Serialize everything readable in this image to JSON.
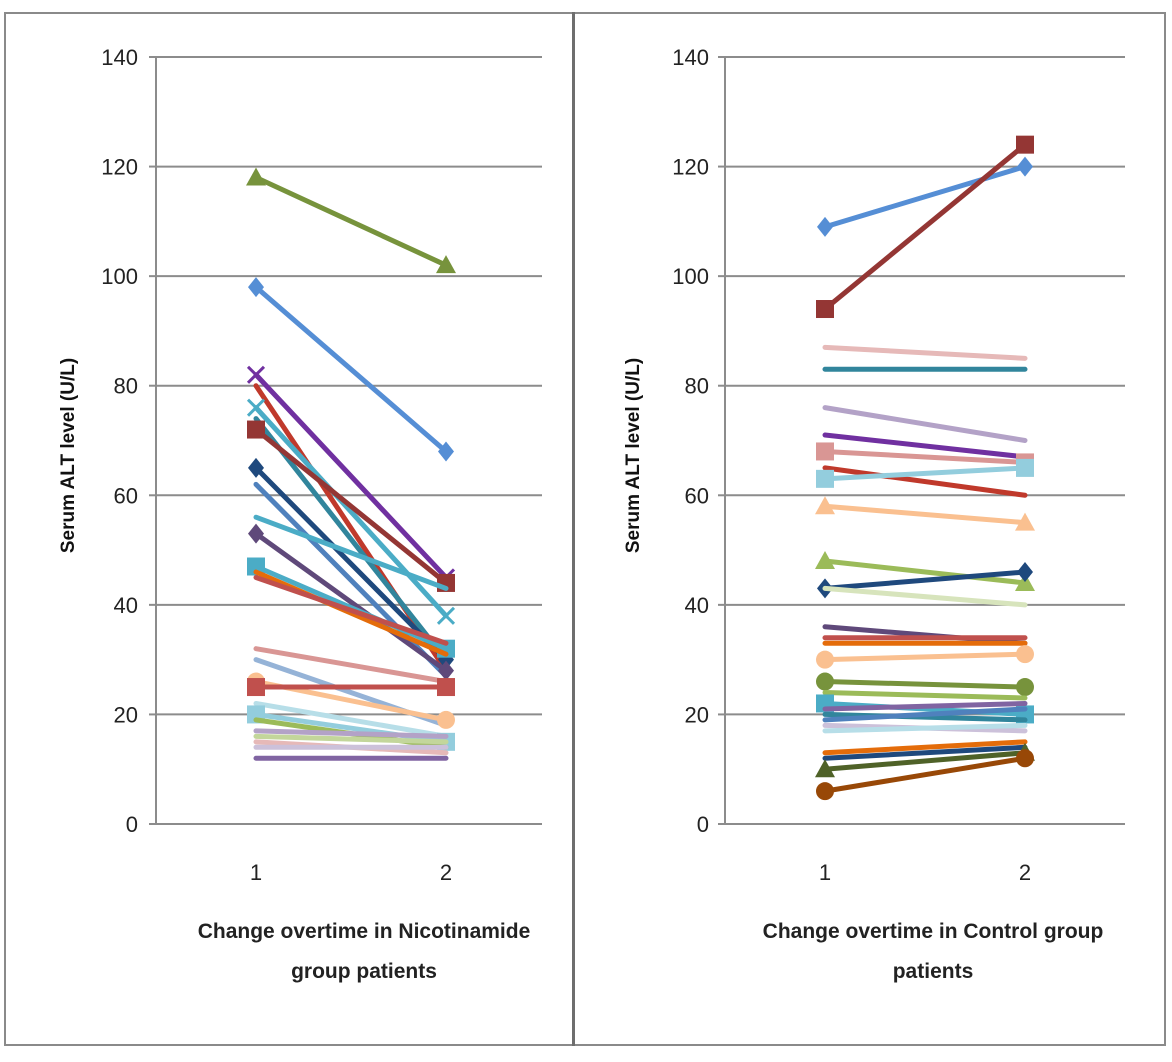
{
  "chart_data": [
    {
      "type": "line",
      "x": [
        1,
        2
      ],
      "x_tick_labels": [
        "1",
        "2"
      ],
      "xlabel_lines": [
        "Change overtime in Nicotinamide",
        "group patients"
      ],
      "ylabel": "Serum ALT level (U/L)",
      "ylim": [
        0,
        140
      ],
      "y_ticks": [
        0,
        20,
        40,
        60,
        80,
        100,
        120,
        140
      ],
      "grid": true,
      "series": [
        {
          "values": [
            118,
            102
          ],
          "color": "#77933c",
          "marker": "triangle"
        },
        {
          "values": [
            98,
            68
          ],
          "color": "#558ed5",
          "marker": "diamond"
        },
        {
          "values": [
            82,
            45
          ],
          "color": "#7030a0",
          "marker": "x"
        },
        {
          "values": [
            80,
            28
          ],
          "color": "#c0392b",
          "marker": "none"
        },
        {
          "values": [
            76,
            38
          ],
          "color": "#4bacc6",
          "marker": "x"
        },
        {
          "values": [
            74,
            30
          ],
          "color": "#31859c",
          "marker": "none"
        },
        {
          "values": [
            72,
            44
          ],
          "color": "#943634",
          "marker": "square"
        },
        {
          "values": [
            65,
            30
          ],
          "color": "#1f497d",
          "marker": "diamond"
        },
        {
          "values": [
            62,
            27
          ],
          "color": "#4f81bd",
          "marker": "none"
        },
        {
          "values": [
            56,
            43
          ],
          "color": "#4bacc6",
          "marker": "none"
        },
        {
          "values": [
            53,
            28
          ],
          "color": "#5f497a",
          "marker": "diamond"
        },
        {
          "values": [
            47,
            32
          ],
          "color": "#4bacc6",
          "marker": "square"
        },
        {
          "values": [
            46,
            31
          ],
          "color": "#e46c0a",
          "marker": "none"
        },
        {
          "values": [
            45,
            33
          ],
          "color": "#c0504d",
          "marker": "none"
        },
        {
          "values": [
            32,
            26
          ],
          "color": "#d99694",
          "marker": "none"
        },
        {
          "values": [
            30,
            18
          ],
          "color": "#95b3d7",
          "marker": "none"
        },
        {
          "values": [
            26,
            19
          ],
          "color": "#fac090",
          "marker": "circle"
        },
        {
          "values": [
            25,
            25
          ],
          "color": "#c0504d",
          "marker": "square"
        },
        {
          "values": [
            22,
            16
          ],
          "color": "#b7dee8",
          "marker": "none"
        },
        {
          "values": [
            20,
            15
          ],
          "color": "#93cddd",
          "marker": "square"
        },
        {
          "values": [
            19,
            14
          ],
          "color": "#9bbb59",
          "marker": "none"
        },
        {
          "values": [
            17,
            16
          ],
          "color": "#b3a2c7",
          "marker": "none"
        },
        {
          "values": [
            16,
            15
          ],
          "color": "#c3d69b",
          "marker": "none"
        },
        {
          "values": [
            15,
            13
          ],
          "color": "#e6b9b8",
          "marker": "none"
        },
        {
          "values": [
            14,
            14
          ],
          "color": "#ccc1da",
          "marker": "none"
        },
        {
          "values": [
            12,
            12
          ],
          "color": "#8064a2",
          "marker": "none"
        }
      ]
    },
    {
      "type": "line",
      "x": [
        1,
        2
      ],
      "x_tick_labels": [
        "1",
        "2"
      ],
      "xlabel_lines": [
        "Change overtime in Control group",
        "patients"
      ],
      "ylabel": "Serum ALT level (U/L)",
      "ylim": [
        0,
        140
      ],
      "y_ticks": [
        0,
        20,
        40,
        60,
        80,
        100,
        120,
        140
      ],
      "grid": true,
      "series": [
        {
          "values": [
            109,
            120
          ],
          "color": "#558ed5",
          "marker": "diamond"
        },
        {
          "values": [
            94,
            124
          ],
          "color": "#943634",
          "marker": "square"
        },
        {
          "values": [
            87,
            85
          ],
          "color": "#e6b9b8",
          "marker": "none"
        },
        {
          "values": [
            83,
            83
          ],
          "color": "#31859c",
          "marker": "none"
        },
        {
          "values": [
            76,
            70
          ],
          "color": "#b3a2c7",
          "marker": "none"
        },
        {
          "values": [
            71,
            67
          ],
          "color": "#7030a0",
          "marker": "none"
        },
        {
          "values": [
            68,
            66
          ],
          "color": "#d99694",
          "marker": "square"
        },
        {
          "values": [
            65,
            60
          ],
          "color": "#c0392b",
          "marker": "none"
        },
        {
          "values": [
            63,
            65
          ],
          "color": "#93cddd",
          "marker": "square"
        },
        {
          "values": [
            58,
            55
          ],
          "color": "#fac090",
          "marker": "triangle"
        },
        {
          "values": [
            48,
            44
          ],
          "color": "#9bbb59",
          "marker": "triangle"
        },
        {
          "values": [
            43,
            46
          ],
          "color": "#1f497d",
          "marker": "diamond"
        },
        {
          "values": [
            43,
            40
          ],
          "color": "#d7e4bc",
          "marker": "none"
        },
        {
          "values": [
            36,
            33
          ],
          "color": "#5f497a",
          "marker": "none"
        },
        {
          "values": [
            34,
            34
          ],
          "color": "#c0504d",
          "marker": "none"
        },
        {
          "values": [
            33,
            33
          ],
          "color": "#e46c0a",
          "marker": "none"
        },
        {
          "values": [
            30,
            31
          ],
          "color": "#fac090",
          "marker": "circle"
        },
        {
          "values": [
            26,
            25
          ],
          "color": "#77933c",
          "marker": "circle"
        },
        {
          "values": [
            24,
            23
          ],
          "color": "#9bbb59",
          "marker": "none"
        },
        {
          "values": [
            22,
            20
          ],
          "color": "#4bacc6",
          "marker": "square"
        },
        {
          "values": [
            21,
            22
          ],
          "color": "#8064a2",
          "marker": "none"
        },
        {
          "values": [
            20,
            19
          ],
          "color": "#31859c",
          "marker": "none"
        },
        {
          "values": [
            19,
            21
          ],
          "color": "#4f81bd",
          "marker": "none"
        },
        {
          "values": [
            18,
            17
          ],
          "color": "#ccc1da",
          "marker": "none"
        },
        {
          "values": [
            17,
            18
          ],
          "color": "#b7dee8",
          "marker": "none"
        },
        {
          "values": [
            13,
            15
          ],
          "color": "#e46c0a",
          "marker": "none"
        },
        {
          "values": [
            12,
            14
          ],
          "color": "#1f497d",
          "marker": "none"
        },
        {
          "values": [
            10,
            13
          ],
          "color": "#4f6228",
          "marker": "triangle"
        },
        {
          "values": [
            6,
            12
          ],
          "color": "#984807",
          "marker": "circle"
        }
      ]
    }
  ]
}
